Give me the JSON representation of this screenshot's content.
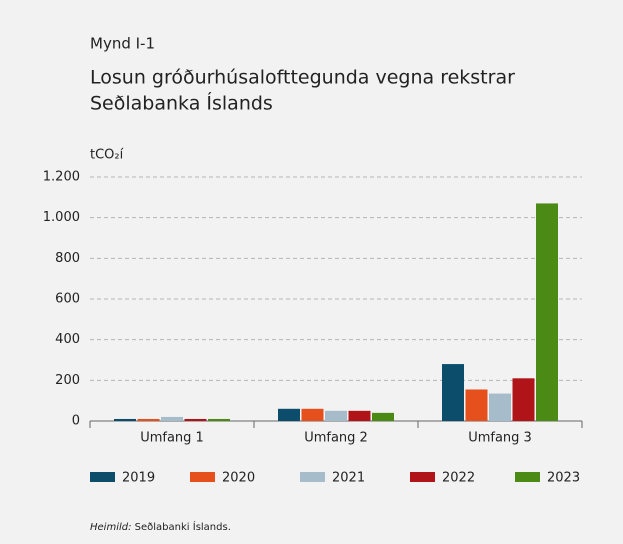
{
  "chart_data": {
    "type": "bar",
    "figure_label": "Mynd I-1",
    "title": [
      "Losun gróðurhúsalofttegunda vegna rekstrar",
      "Seðlabanka Íslands"
    ],
    "y_label": "tCO₂í",
    "categories": [
      "Umfang 1",
      "Umfang 2",
      "Umfang 3"
    ],
    "series": [
      {
        "name": "2019",
        "color": "#0b4d6b",
        "values": [
          10,
          60,
          280
        ]
      },
      {
        "name": "2020",
        "color": "#e5501c",
        "values": [
          10,
          60,
          155
        ]
      },
      {
        "name": "2021",
        "color": "#a7bccb",
        "values": [
          20,
          50,
          135
        ]
      },
      {
        "name": "2022",
        "color": "#b01419",
        "values": [
          10,
          50,
          210
        ]
      },
      {
        "name": "2023",
        "color": "#4b8a14",
        "values": [
          10,
          40,
          1070
        ]
      }
    ],
    "ylim": [
      0,
      1200
    ],
    "yticks": [
      0,
      200,
      400,
      600,
      800,
      {
        "value": 1000,
        "label": "1.000"
      },
      {
        "value": 1200,
        "label": "1.200"
      }
    ],
    "grid": true,
    "source_label": "Heimild:",
    "source": "Seðlabanki Íslands."
  }
}
